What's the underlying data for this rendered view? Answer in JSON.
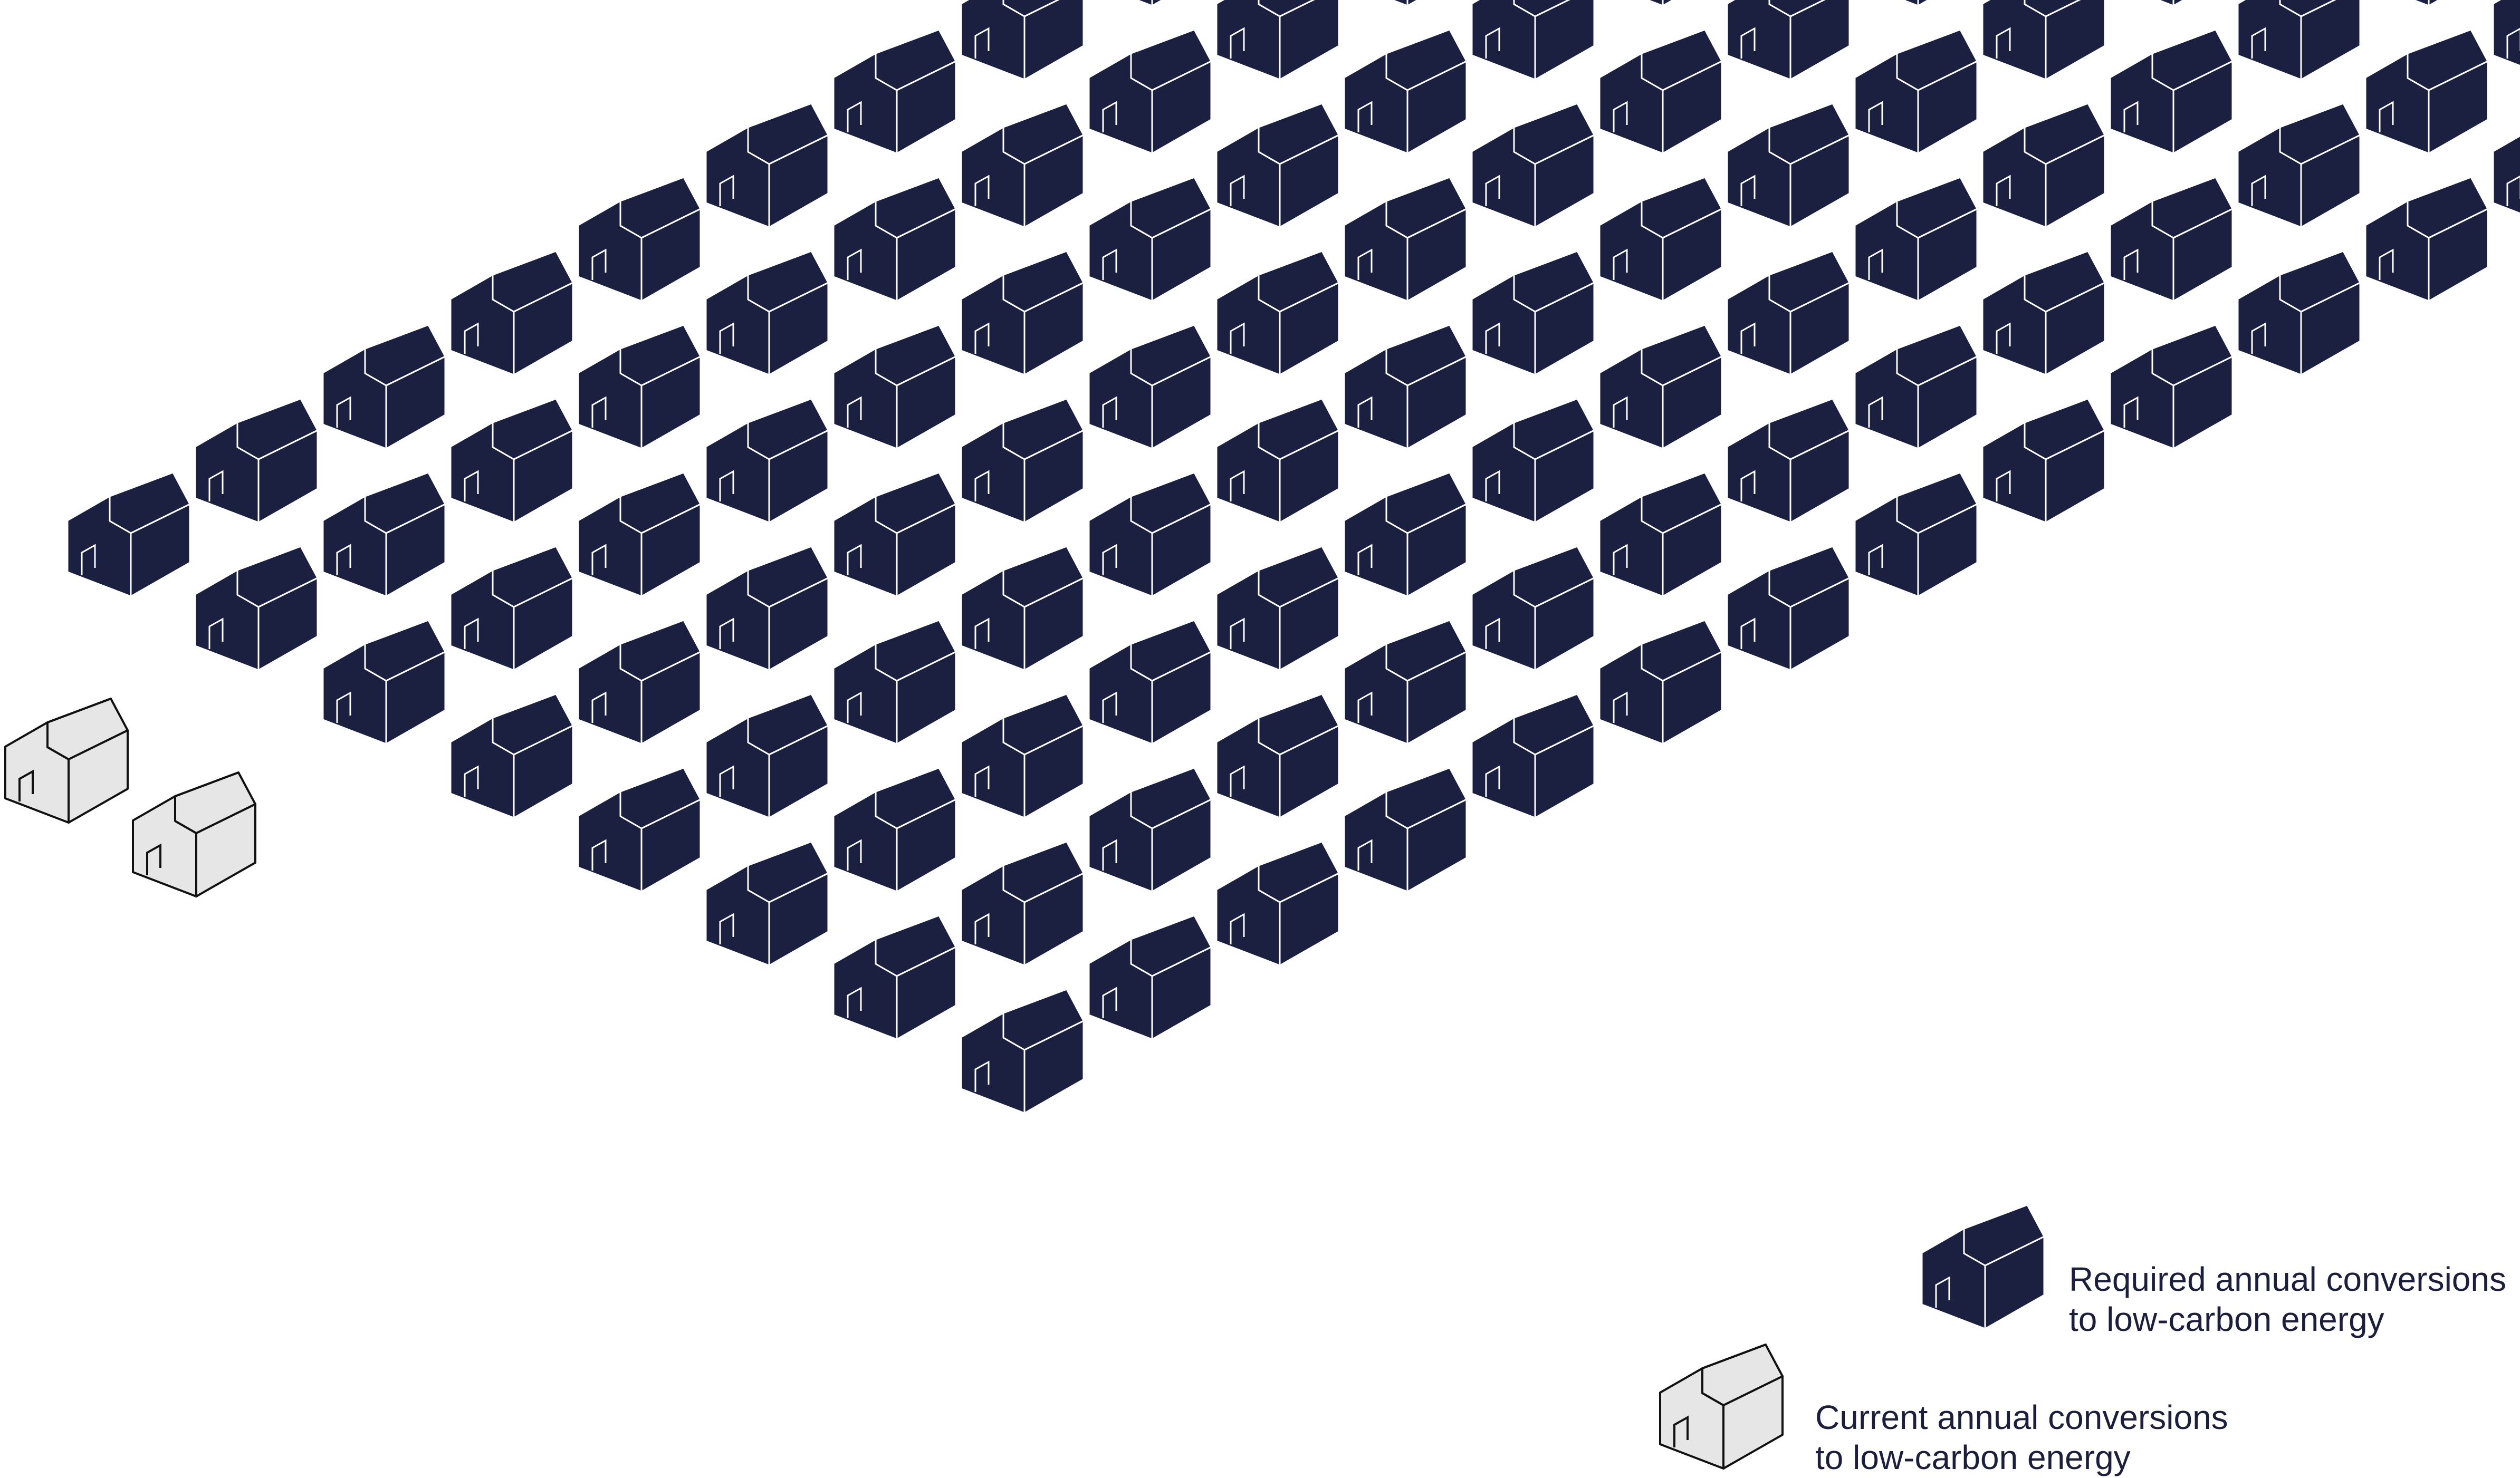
{
  "colors": {
    "required": "#1c2040",
    "required_outline": "#ffffff",
    "current": "#e6e6e6",
    "current_outline": "#111111",
    "text": "#1b1f3b",
    "background": "#ffffff"
  },
  "counts": {
    "required_houses": 118,
    "current_houses": 2
  },
  "legend": {
    "required": {
      "icon": "house-dark-icon",
      "line1": "Required annual conversions",
      "line2": "to low-carbon energy"
    },
    "current": {
      "icon": "house-light-icon",
      "line1": "Current annual conversions",
      "line2": "to low-carbon energy"
    }
  }
}
